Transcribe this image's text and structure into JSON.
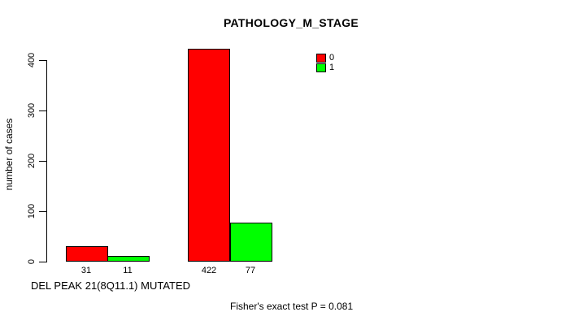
{
  "chart_data": {
    "type": "bar",
    "title": "PATHOLOGY_M_STAGE",
    "ylabel": "number of cases",
    "xlabel": "DEL PEAK 21(8Q11.1) MUTATED",
    "note": "Fisher's exact test P = 0.081",
    "legend": [
      {
        "label": "0",
        "color": "#ff0000"
      },
      {
        "label": "1",
        "color": "#00ff00"
      }
    ],
    "series": [
      {
        "name": "0",
        "color": "#ff0000",
        "values": [
          31,
          422
        ]
      },
      {
        "name": "1",
        "color": "#00ff00",
        "values": [
          11,
          77
        ]
      }
    ],
    "groups": [
      {
        "values": [
          31,
          11
        ]
      },
      {
        "values": [
          422,
          77
        ]
      }
    ],
    "bar_labels": [
      "31",
      "11",
      "422",
      "77"
    ],
    "yticks": [
      "0",
      "100",
      "200",
      "300",
      "400"
    ],
    "axis_range": [
      0,
      400
    ],
    "ylim": [
      0,
      440
    ],
    "grid": false,
    "legend_position": "top-right",
    "background": "#ffffff"
  }
}
